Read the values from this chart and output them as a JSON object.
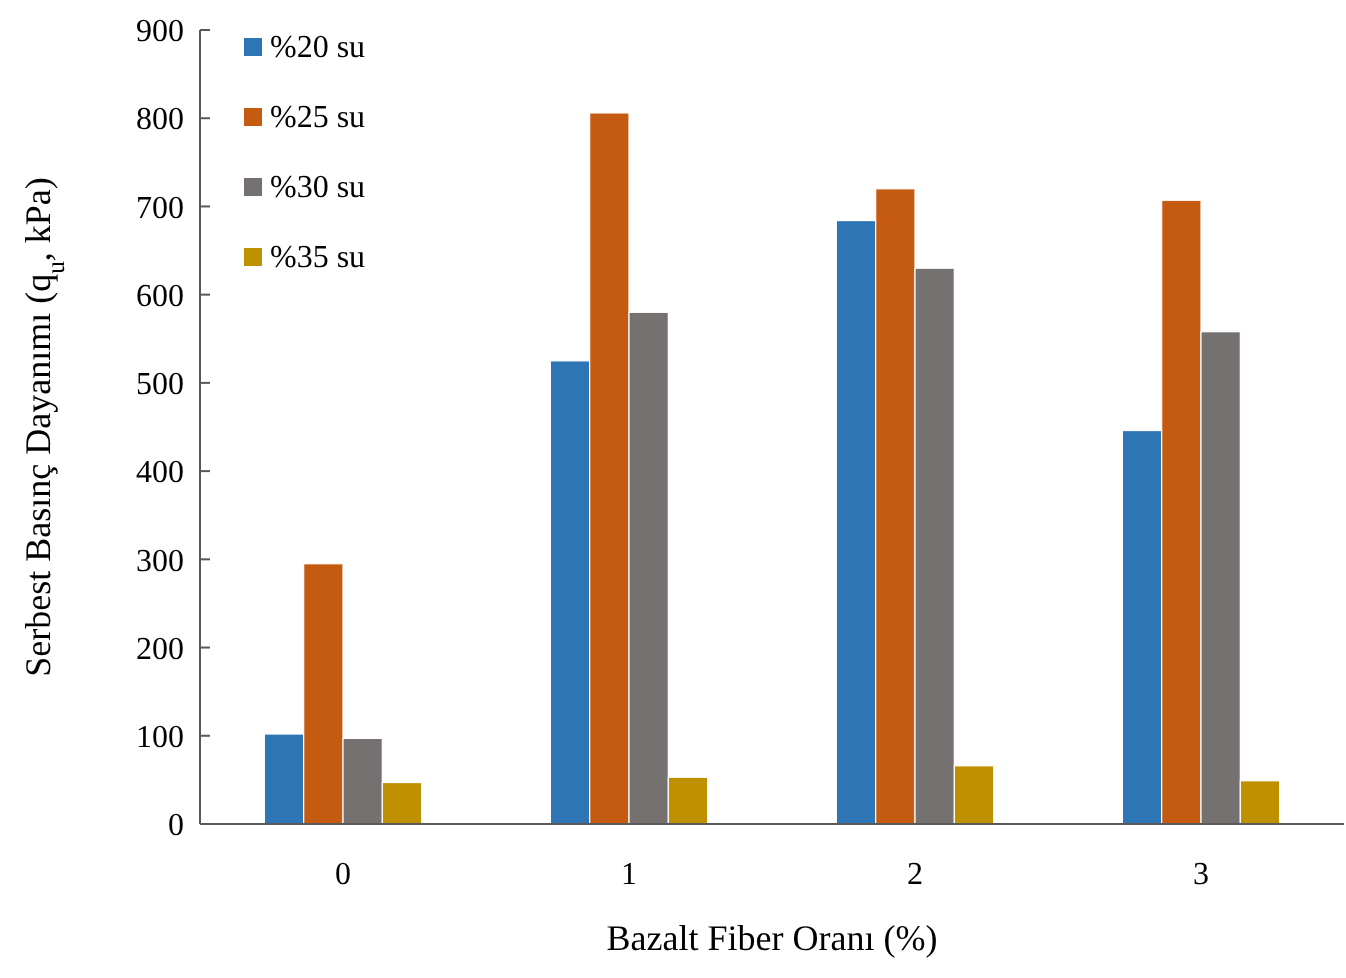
{
  "chart_data": {
    "type": "bar",
    "xlabel": "Bazalt Fiber Oranı (%)",
    "ylabel": "Serbest Basınç Dayanımı (q$_{u}$, kPa)",
    "categories": [
      "0",
      "1",
      "2",
      "3"
    ],
    "series": [
      {
        "name": "%20 su",
        "color": "#2e75b6",
        "values": [
          102,
          525,
          684,
          446
        ]
      },
      {
        "name": "%25 su",
        "color": "#c55a11",
        "values": [
          295,
          806,
          720,
          707
        ]
      },
      {
        "name": "%30 su",
        "color": "#767171",
        "values": [
          97,
          580,
          630,
          558
        ]
      },
      {
        "name": "%35 su",
        "color": "#bf9000",
        "values": [
          47,
          53,
          66,
          49
        ]
      }
    ],
    "ylim": [
      0,
      900
    ],
    "yticks": [
      0,
      100,
      200,
      300,
      400,
      500,
      600,
      700,
      800,
      900
    ],
    "grid": false,
    "legend": "top left"
  }
}
